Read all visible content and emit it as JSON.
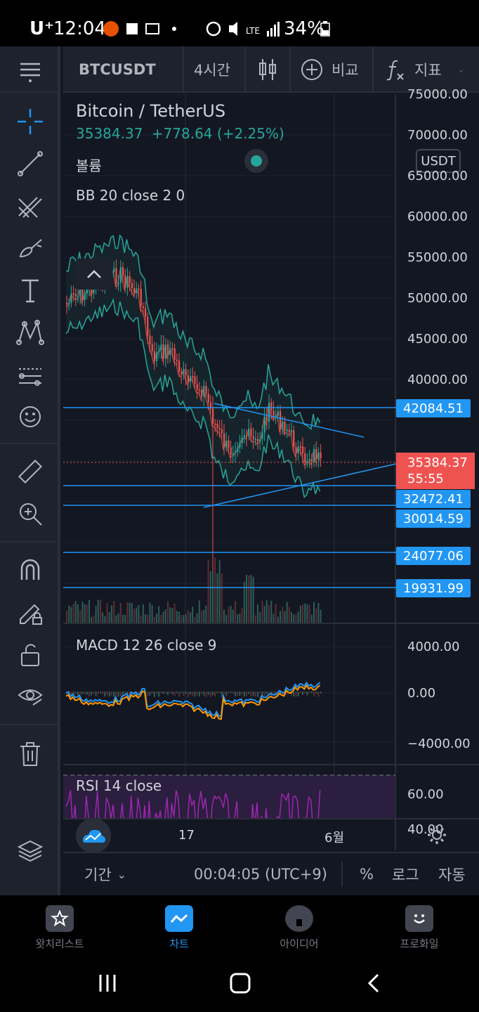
{
  "status_bar": {
    "carrier": "U⁺",
    "time": "12:04",
    "battery": "34%"
  },
  "header": {
    "symbol": "BTCUSDT",
    "interval": "4시간",
    "compare_label": "비교",
    "indicators_label": "지표"
  },
  "legend": {
    "title": "Bitcoin / TetherUS",
    "last_price": "35384.37",
    "change": "+778.64 (+2.25%)",
    "volume_label": "볼륨",
    "bb_label": "BB 20 close 2 0",
    "currency_badge": "USDT"
  },
  "price_axis": {
    "labels": [
      "75000.00",
      "70000.00",
      "65000.00",
      "60000.00",
      "55000.00",
      "50000.00",
      "45000.00",
      "40000.00"
    ],
    "tags": [
      "42084.51",
      "32472.41",
      "30014.59",
      "24077.06",
      "19931.99"
    ],
    "current_price": "35384.37",
    "countdown": "55:55"
  },
  "macd": {
    "label": "MACD 12 26 close 9",
    "axis": [
      "4000.00",
      "0.00",
      "−4000.00"
    ]
  },
  "rsi": {
    "label": "RSI 14 close",
    "axis": [
      "60.00",
      "40.00"
    ]
  },
  "time_axis": {
    "labels": [
      "17",
      "6월"
    ]
  },
  "bottom_bar": {
    "range_label": "기간",
    "clock": "00:04:05 (UTC+9)",
    "percent": "%",
    "log": "로그",
    "auto": "자동"
  },
  "nav": {
    "items": [
      {
        "label": "왓치리스트",
        "icon": "star-icon"
      },
      {
        "label": "차트",
        "icon": "chart-icon"
      },
      {
        "label": "아이디어",
        "icon": "lightbulb-icon"
      },
      {
        "label": "프로화일",
        "icon": "profile-icon"
      }
    ]
  },
  "colors": {
    "background": "#131722",
    "panel": "#1e222d",
    "accent": "#2196f3",
    "up": "#26a69a",
    "down": "#ef5350",
    "rsi": "#9c27b0",
    "macd_line": "#2196f3",
    "signal_line": "#ff9800"
  }
}
